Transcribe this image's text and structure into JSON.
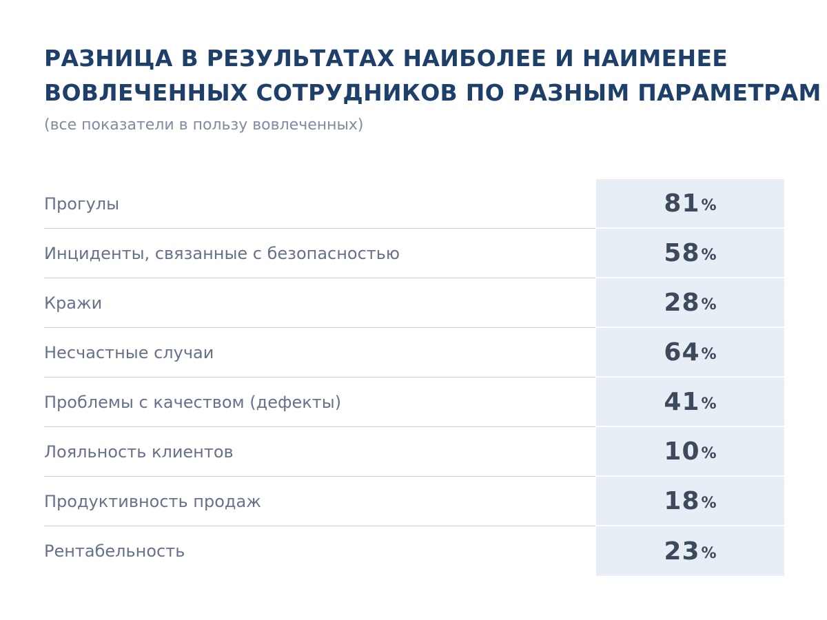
{
  "header": {
    "title_line1": "РАЗНИЦА В РЕЗУЛЬТАТАХ НАИБОЛЕЕ И НАИМЕНЕЕ",
    "title_line2": "ВОВЛЕЧЕННЫХ СОТРУДНИКОВ ПО РАЗНЫМ ПАРАМЕТРАМ",
    "subtitle": "(все показатели в пользу вовлеченных)"
  },
  "table": {
    "percent_sign": "%",
    "rows": [
      {
        "label": "Прогулы",
        "value": "81"
      },
      {
        "label": "Инциденты, связанные с безопасностью",
        "value": "58"
      },
      {
        "label": "Кражи",
        "value": "28"
      },
      {
        "label": "Несчастные случаи",
        "value": "64"
      },
      {
        "label": "Проблемы с качеством (дефекты)",
        "value": "41"
      },
      {
        "label": "Лояльность клиентов",
        "value": "10"
      },
      {
        "label": "Продуктивность продаж",
        "value": "18"
      },
      {
        "label": "Рентабельность",
        "value": "23"
      }
    ]
  },
  "colors": {
    "title": "#1f3f6b",
    "subtitle": "#7f8ba0",
    "label_text": "#66718a",
    "value_text": "#3c4a5c",
    "value_background": "#e8eef5",
    "divider": "#c9cdd3"
  }
}
